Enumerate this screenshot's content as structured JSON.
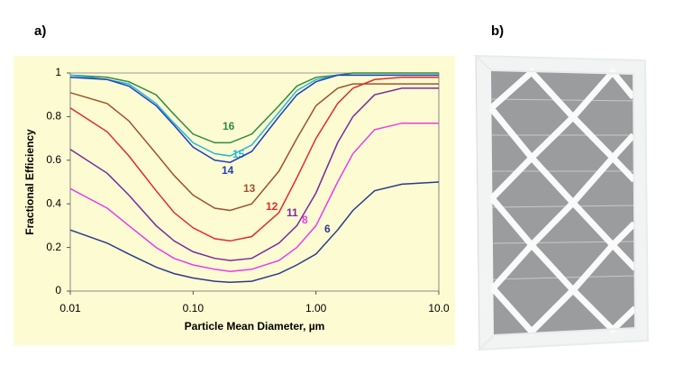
{
  "panel_labels": [
    "a)",
    "b)"
  ],
  "chart_data": {
    "type": "line",
    "xlabel": "Particle Mean Diameter, µm",
    "ylabel": "Fractional Efficiency",
    "xscale": "log",
    "xlim": [
      0.01,
      10
    ],
    "xticks": [
      0.01,
      {
        "value": 0.1,
        "label": "0.10"
      },
      {
        "value": 1,
        "label": "1.00"
      },
      {
        "value": 10,
        "label": "10.0"
      }
    ],
    "ylim": [
      0,
      1
    ],
    "yticks": [
      0,
      0.2,
      0.4,
      0.6,
      0.8,
      1
    ],
    "grid": false,
    "x": [
      0.01,
      0.02,
      0.03,
      0.05,
      0.07,
      0.1,
      0.15,
      0.2,
      0.3,
      0.5,
      0.7,
      1,
      1.5,
      2,
      3,
      5,
      10
    ],
    "series": [
      {
        "name": "16",
        "color": "#2e8b3e",
        "values": [
          0.99,
          0.98,
          0.96,
          0.9,
          0.81,
          0.72,
          0.68,
          0.68,
          0.72,
          0.85,
          0.94,
          0.98,
          0.99,
          1,
          1,
          1,
          1
        ]
      },
      {
        "name": "15",
        "color": "#29b6d6",
        "values": [
          0.99,
          0.97,
          0.95,
          0.86,
          0.77,
          0.68,
          0.63,
          0.62,
          0.67,
          0.82,
          0.92,
          0.97,
          0.99,
          0.99,
          0.99,
          0.99,
          0.99
        ]
      },
      {
        "name": "14",
        "color": "#1f3fbf",
        "values": [
          0.98,
          0.97,
          0.94,
          0.85,
          0.76,
          0.66,
          0.6,
          0.59,
          0.64,
          0.8,
          0.9,
          0.96,
          0.99,
          0.99,
          0.99,
          0.99,
          0.99
        ]
      },
      {
        "name": "13",
        "color": "#a0522d",
        "values": [
          0.91,
          0.86,
          0.78,
          0.63,
          0.53,
          0.44,
          0.38,
          0.37,
          0.4,
          0.55,
          0.7,
          0.85,
          0.93,
          0.95,
          0.95,
          0.95,
          0.95
        ]
      },
      {
        "name": "12",
        "color": "#e02b2b",
        "values": [
          0.84,
          0.73,
          0.62,
          0.46,
          0.36,
          0.29,
          0.24,
          0.23,
          0.25,
          0.36,
          0.52,
          0.7,
          0.86,
          0.93,
          0.97,
          0.98,
          0.98
        ]
      },
      {
        "name": "11",
        "color": "#7b2b9b",
        "values": [
          0.65,
          0.54,
          0.44,
          0.3,
          0.23,
          0.18,
          0.15,
          0.14,
          0.15,
          0.22,
          0.3,
          0.45,
          0.68,
          0.8,
          0.9,
          0.93,
          0.93
        ]
      },
      {
        "name": "8",
        "color": "#e83de8",
        "values": [
          0.47,
          0.38,
          0.3,
          0.2,
          0.15,
          0.12,
          0.1,
          0.09,
          0.1,
          0.14,
          0.2,
          0.3,
          0.5,
          0.63,
          0.74,
          0.77,
          0.77
        ]
      },
      {
        "name": "6",
        "color": "#2c3a8c",
        "values": [
          0.28,
          0.22,
          0.17,
          0.11,
          0.08,
          0.06,
          0.045,
          0.04,
          0.045,
          0.08,
          0.12,
          0.17,
          0.28,
          0.37,
          0.46,
          0.49,
          0.5
        ]
      }
    ]
  }
}
